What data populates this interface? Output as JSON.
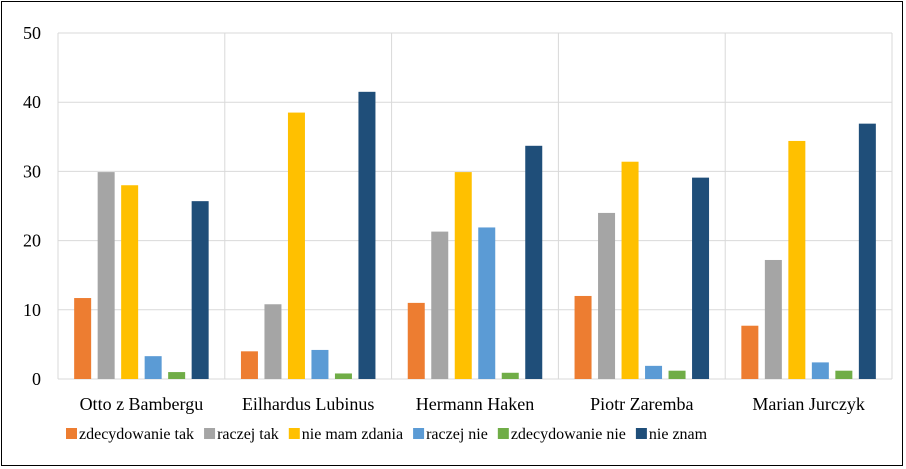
{
  "chart_data": {
    "type": "bar",
    "categories": [
      "Otto z Bambergu",
      "Eilhardus Lubinus",
      "Hermann Haken",
      "Piotr Zaremba",
      "Marian Jurczyk"
    ],
    "series": [
      {
        "name": "zdecydowanie tak",
        "color": "#ED7D31",
        "values": [
          11.7,
          4.0,
          11.0,
          12.0,
          7.7
        ]
      },
      {
        "name": "raczej tak",
        "color": "#A5A5A5",
        "values": [
          29.9,
          10.8,
          21.3,
          24.0,
          17.2
        ]
      },
      {
        "name": "nie mam zdania",
        "color": "#FFC000",
        "values": [
          28.0,
          38.5,
          29.9,
          31.4,
          34.4
        ]
      },
      {
        "name": "raczej nie",
        "color": "#5B9BD5",
        "values": [
          3.3,
          4.2,
          21.9,
          1.9,
          2.4
        ]
      },
      {
        "name": "zdecydowanie nie",
        "color": "#70AD47",
        "values": [
          1.0,
          0.8,
          0.9,
          1.2,
          1.2
        ]
      },
      {
        "name": "nie znam",
        "color": "#1F4E79",
        "values": [
          25.7,
          41.5,
          33.7,
          29.1,
          36.9
        ]
      }
    ],
    "yticks": [
      "0",
      "10",
      "20",
      "30",
      "40",
      "50"
    ],
    "ylim": [
      0,
      50
    ],
    "grid": true,
    "legend": "bottom"
  }
}
